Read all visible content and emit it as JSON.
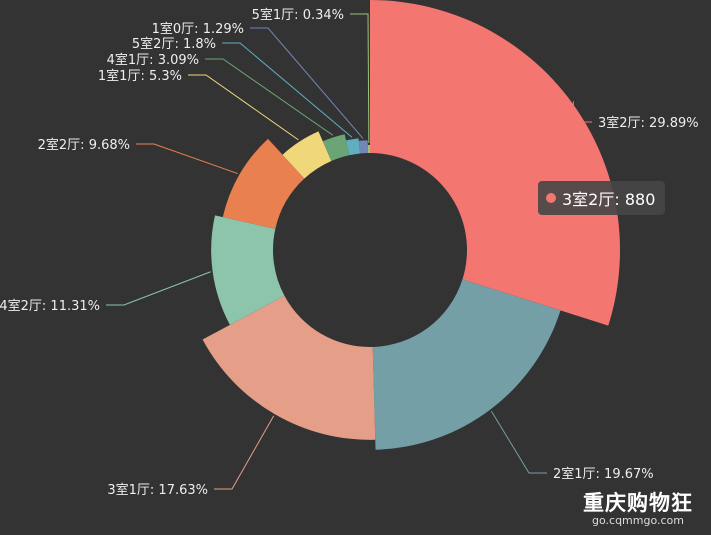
{
  "chart_data": {
    "type": "pie",
    "variant": "rose",
    "slices": [
      {
        "label": "3室2厅",
        "percent": "29.89%",
        "value": 880,
        "color": "#f47670"
      },
      {
        "label": "2室1厅",
        "percent": "19.67%",
        "value": 579,
        "color": "#759fa7"
      },
      {
        "label": "3室1厅",
        "percent": "17.63%",
        "value": 519,
        "color": "#e59e87"
      },
      {
        "label": "4室2厅",
        "percent": "11.31%",
        "value": 333,
        "color": "#8cc4ac"
      },
      {
        "label": "2室2厅",
        "percent": "9.68%",
        "value": 285,
        "color": "#e9804f"
      },
      {
        "label": "1室1厅",
        "percent": "5.3%",
        "value": 156,
        "color": "#f0d87a"
      },
      {
        "label": "4室1厅",
        "percent": "3.09%",
        "value": 91,
        "color": "#6ca575"
      },
      {
        "label": "5室2厅",
        "percent": "1.8%",
        "value": 53,
        "color": "#5fafbf"
      },
      {
        "label": "1室0厅",
        "percent": "1.29%",
        "value": 38,
        "color": "#7287b7"
      },
      {
        "label": "5室1厅",
        "percent": "0.34%",
        "value": 10,
        "color": "#94c77d"
      }
    ]
  },
  "tooltip": {
    "label": "3室2厅",
    "value": "880",
    "color": "#f47670"
  },
  "watermark": {
    "main": "重庆购物狂",
    "sub": "go.cqmmgo.com"
  }
}
